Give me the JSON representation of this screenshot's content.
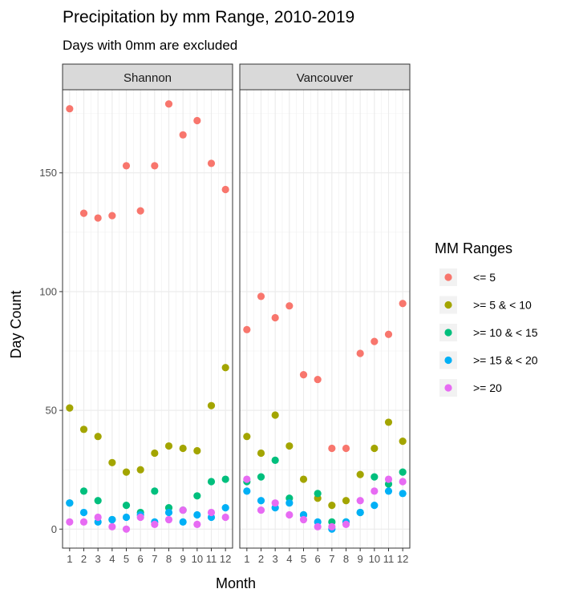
{
  "chart_data": {
    "type": "scatter",
    "title": "Precipitation by mm Range, 2010-2019",
    "subtitle": "Days with 0mm are excluded",
    "xlabel": "Month",
    "ylabel": "Day Count",
    "x": [
      1,
      2,
      3,
      4,
      5,
      6,
      7,
      8,
      9,
      10,
      11,
      12
    ],
    "x_tick_labels": [
      "1",
      "2",
      "3",
      "4",
      "5",
      "6",
      "7",
      "8",
      "9",
      "10",
      "11",
      "12"
    ],
    "ylim": [
      -8,
      185
    ],
    "y_ticks": [
      0,
      50,
      100,
      150
    ],
    "y_tick_labels": [
      "0",
      "50",
      "100",
      "150"
    ],
    "grid": true,
    "legend_position": "right",
    "legend_title": "MM Ranges",
    "series_order": [
      "<= 5",
      ">= 5 & < 10",
      ">= 10 & < 15",
      ">= 15 & < 20",
      ">= 20"
    ],
    "colors": {
      "<= 5": "#F8766D",
      ">= 5 & < 10": "#A3A500",
      ">= 10 & < 15": "#00BF7D",
      ">= 15 & < 20": "#00B0F6",
      ">= 20": "#E76BF3"
    },
    "panels": [
      {
        "name": "Shannon",
        "series": [
          {
            "name": "<= 5",
            "values": [
              177,
              133,
              131,
              132,
              153,
              134,
              153,
              179,
              166,
              172,
              154,
              143
            ]
          },
          {
            "name": ">= 5 & < 10",
            "values": [
              51,
              42,
              39,
              28,
              24,
              25,
              32,
              35,
              34,
              33,
              52,
              68
            ]
          },
          {
            "name": ">= 10 & < 15",
            "values": [
              11,
              16,
              12,
              4,
              10,
              7,
              16,
              9,
              8,
              14,
              20,
              21
            ]
          },
          {
            "name": ">= 15 & < 20",
            "values": [
              11,
              7,
              3,
              4,
              5,
              6,
              3,
              7,
              3,
              6,
              5,
              9
            ]
          },
          {
            "name": ">= 20",
            "values": [
              3,
              3,
              5,
              1,
              0,
              5,
              2,
              4,
              8,
              2,
              7,
              5
            ]
          }
        ]
      },
      {
        "name": "Vancouver",
        "series": [
          {
            "name": "<= 5",
            "values": [
              84,
              98,
              89,
              94,
              65,
              63,
              34,
              34,
              74,
              79,
              82,
              95
            ]
          },
          {
            "name": ">= 5 & < 10",
            "values": [
              39,
              32,
              48,
              35,
              21,
              13,
              10,
              12,
              23,
              34,
              45,
              37
            ]
          },
          {
            "name": ">= 10 & < 15",
            "values": [
              20,
              22,
              29,
              13,
              6,
              15,
              3,
              3,
              7,
              22,
              19,
              24
            ]
          },
          {
            "name": ">= 15 & < 20",
            "values": [
              16,
              12,
              9,
              11,
              6,
              3,
              0,
              3,
              7,
              10,
              16,
              15
            ]
          },
          {
            "name": ">= 20",
            "values": [
              21,
              8,
              11,
              6,
              4,
              1,
              1,
              2,
              12,
              16,
              21,
              20
            ]
          }
        ]
      }
    ]
  }
}
